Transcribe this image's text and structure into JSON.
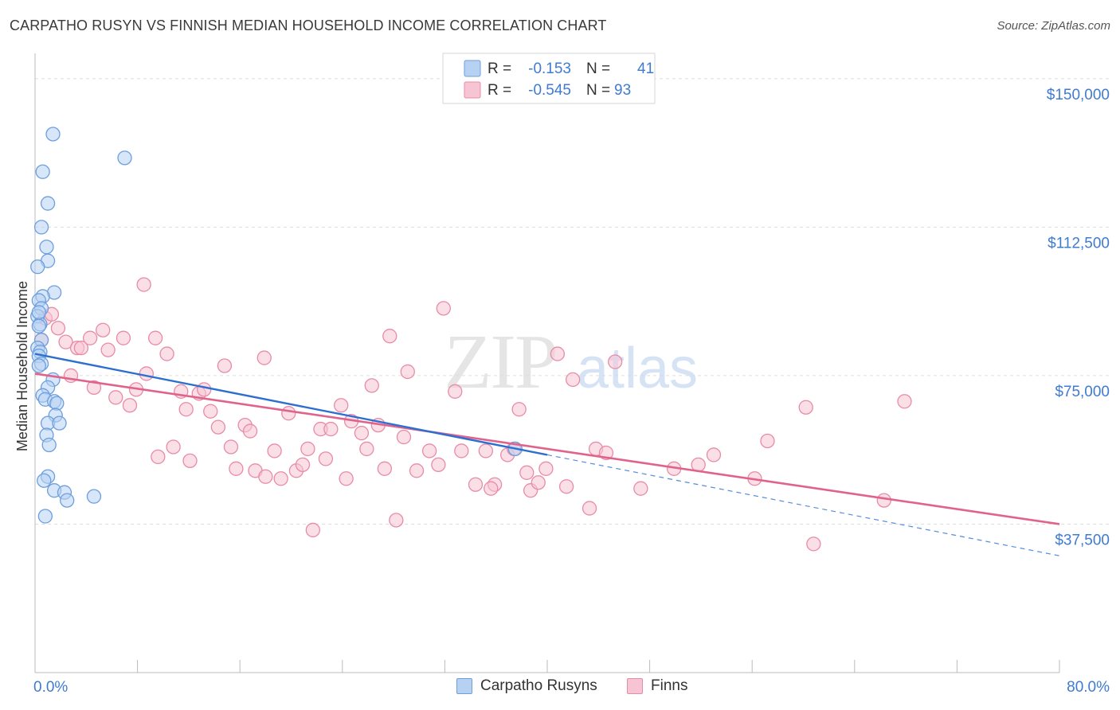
{
  "title": "CARPATHO RUSYN VS FINNISH MEDIAN HOUSEHOLD INCOME CORRELATION CHART",
  "source": "Source: ZipAtlas.com",
  "watermark": {
    "zip": "ZIP",
    "atlas": "atlas"
  },
  "legend_top": {
    "items": [
      {
        "r_label": "R =",
        "r_value": "-0.153",
        "n_label": "N =",
        "n_value": "41"
      },
      {
        "r_label": "R =",
        "r_value": "-0.545",
        "n_label": "N =",
        "n_value": "93"
      }
    ]
  },
  "legend_bottom": {
    "items": [
      "Carpatho Rusyns",
      "Finns"
    ]
  },
  "colors": {
    "blue_fill": "#b6d1f2",
    "blue_stroke": "#6d9fde",
    "blue_line": "#2c6fd1",
    "pink_fill": "#f7c4d4",
    "pink_stroke": "#e88ba8",
    "pink_line": "#e0638c",
    "axis_label": "#3f7bd0",
    "grid": "#dddddd"
  },
  "chart_data": {
    "type": "scatter",
    "title": "CARPATHO RUSYN VS FINNISH MEDIAN HOUSEHOLD INCOME CORRELATION CHART",
    "xlabel": "",
    "ylabel": "Median Household Income",
    "xlim": [
      0,
      80
    ],
    "ylim": [
      0,
      155000
    ],
    "x_tick_labels": [
      "0.0%",
      "80.0%"
    ],
    "y_ticks": [
      37500,
      75000,
      112500,
      150000
    ],
    "y_tick_labels": [
      "$37,500",
      "$75,000",
      "$112,500",
      "$150,000"
    ],
    "grid": true,
    "legend_position": "top-center",
    "series": [
      {
        "name": "Carpatho Rusyns",
        "r": -0.153,
        "n": 41,
        "trend": {
          "x": [
            0,
            40
          ],
          "y": [
            80500,
            55000
          ],
          "dashed_extension": {
            "x": [
              40,
              80
            ],
            "y": [
              55000,
              29500
            ]
          }
        },
        "points": [
          [
            1.4,
            136000
          ],
          [
            7.0,
            130000
          ],
          [
            0.6,
            126500
          ],
          [
            1.0,
            118500
          ],
          [
            0.5,
            112500
          ],
          [
            0.9,
            107500
          ],
          [
            1.0,
            104000
          ],
          [
            0.2,
            102500
          ],
          [
            1.5,
            96000
          ],
          [
            0.6,
            95000
          ],
          [
            0.3,
            94000
          ],
          [
            0.5,
            92000
          ],
          [
            0.2,
            90000
          ],
          [
            0.4,
            88000
          ],
          [
            0.3,
            87500
          ],
          [
            0.5,
            84000
          ],
          [
            0.2,
            82000
          ],
          [
            0.4,
            81000
          ],
          [
            0.3,
            80000
          ],
          [
            0.5,
            78000
          ],
          [
            0.3,
            77500
          ],
          [
            1.4,
            74000
          ],
          [
            1.0,
            72000
          ],
          [
            0.6,
            70000
          ],
          [
            0.8,
            69000
          ],
          [
            1.5,
            68500
          ],
          [
            1.7,
            68000
          ],
          [
            1.6,
            65000
          ],
          [
            1.0,
            63000
          ],
          [
            1.9,
            63000
          ],
          [
            0.9,
            60000
          ],
          [
            1.1,
            57500
          ],
          [
            1.0,
            49500
          ],
          [
            0.7,
            48500
          ],
          [
            1.5,
            46000
          ],
          [
            2.3,
            45500
          ],
          [
            4.6,
            44500
          ],
          [
            2.5,
            43500
          ],
          [
            0.8,
            39500
          ],
          [
            37.5,
            56500
          ],
          [
            0.3,
            91000
          ]
        ]
      },
      {
        "name": "Finns",
        "r": -0.545,
        "n": 93,
        "trend": {
          "x": [
            0,
            80
          ],
          "y": [
            75500,
            37500
          ]
        },
        "points": [
          [
            0.5,
            84000
          ],
          [
            0.8,
            89500
          ],
          [
            1.3,
            90500
          ],
          [
            1.8,
            87000
          ],
          [
            2.4,
            83500
          ],
          [
            2.8,
            75000
          ],
          [
            3.3,
            82000
          ],
          [
            3.6,
            82000
          ],
          [
            4.3,
            84500
          ],
          [
            4.6,
            72000
          ],
          [
            5.3,
            86500
          ],
          [
            5.7,
            81500
          ],
          [
            6.3,
            69500
          ],
          [
            6.9,
            84500
          ],
          [
            7.4,
            67500
          ],
          [
            7.9,
            71500
          ],
          [
            8.5,
            98000
          ],
          [
            8.7,
            75500
          ],
          [
            9.4,
            84500
          ],
          [
            10.3,
            80500
          ],
          [
            9.6,
            54500
          ],
          [
            10.8,
            57000
          ],
          [
            11.4,
            71000
          ],
          [
            11.8,
            66500
          ],
          [
            12.1,
            53500
          ],
          [
            12.8,
            70500
          ],
          [
            13.2,
            71500
          ],
          [
            13.7,
            66000
          ],
          [
            14.3,
            62000
          ],
          [
            14.8,
            77500
          ],
          [
            15.3,
            57000
          ],
          [
            15.7,
            51500
          ],
          [
            16.4,
            62500
          ],
          [
            16.8,
            61000
          ],
          [
            17.2,
            51000
          ],
          [
            17.9,
            79500
          ],
          [
            18.0,
            49500
          ],
          [
            18.7,
            56000
          ],
          [
            19.2,
            49000
          ],
          [
            19.8,
            65500
          ],
          [
            20.4,
            51000
          ],
          [
            20.9,
            52500
          ],
          [
            21.3,
            56500
          ],
          [
            21.7,
            36000
          ],
          [
            22.3,
            61500
          ],
          [
            22.7,
            54000
          ],
          [
            23.1,
            61500
          ],
          [
            23.9,
            67500
          ],
          [
            24.3,
            49000
          ],
          [
            24.7,
            63500
          ],
          [
            25.5,
            60500
          ],
          [
            25.9,
            56500
          ],
          [
            26.3,
            72500
          ],
          [
            26.8,
            62500
          ],
          [
            27.3,
            51500
          ],
          [
            27.7,
            85000
          ],
          [
            28.2,
            38500
          ],
          [
            28.8,
            59500
          ],
          [
            29.1,
            76000
          ],
          [
            29.8,
            51000
          ],
          [
            30.8,
            56000
          ],
          [
            31.5,
            52500
          ],
          [
            31.9,
            92000
          ],
          [
            32.8,
            71000
          ],
          [
            33.3,
            56000
          ],
          [
            34.4,
            47500
          ],
          [
            35.2,
            56000
          ],
          [
            35.9,
            47500
          ],
          [
            35.6,
            46500
          ],
          [
            36.9,
            55000
          ],
          [
            37.4,
            56500
          ],
          [
            37.8,
            66500
          ],
          [
            38.4,
            50500
          ],
          [
            38.7,
            46000
          ],
          [
            39.3,
            48000
          ],
          [
            39.9,
            51500
          ],
          [
            40.8,
            80500
          ],
          [
            41.5,
            47000
          ],
          [
            42.0,
            74000
          ],
          [
            43.3,
            41500
          ],
          [
            43.8,
            56500
          ],
          [
            44.6,
            55500
          ],
          [
            45.3,
            78500
          ],
          [
            47.3,
            46500
          ],
          [
            49.9,
            51500
          ],
          [
            51.8,
            52500
          ],
          [
            53.0,
            55000
          ],
          [
            56.2,
            49000
          ],
          [
            57.2,
            58500
          ],
          [
            60.8,
            32500
          ],
          [
            60.2,
            67000
          ],
          [
            66.3,
            43500
          ],
          [
            67.9,
            68500
          ]
        ]
      }
    ]
  }
}
